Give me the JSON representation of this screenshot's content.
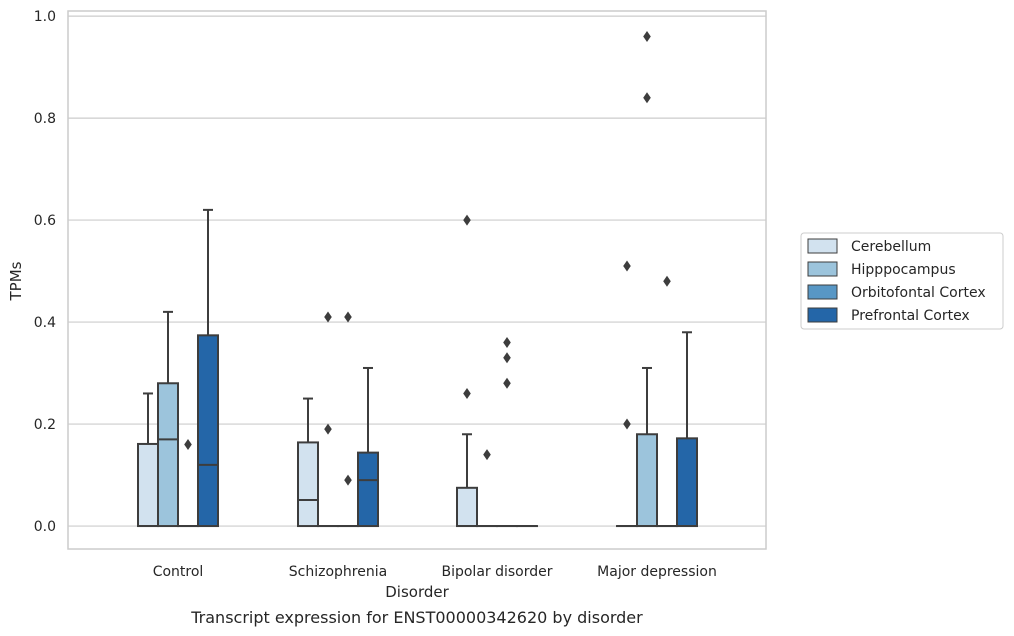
{
  "chart_data": {
    "type": "box",
    "title": "",
    "xlabel": "Disorder",
    "ylabel": "TPMs",
    "caption": "Transcript expression for ENST00000342620 by disorder",
    "categories": [
      "Control",
      "Schizophrenia",
      "Bipolar disorder",
      "Major depression"
    ],
    "ylim": [
      -0.045,
      1.01
    ],
    "yticks": [
      0.0,
      0.2,
      0.4,
      0.6,
      0.8,
      1.0
    ],
    "ytick_labels": [
      "0.0",
      "0.2",
      "0.4",
      "0.6",
      "0.8",
      "1.0"
    ],
    "grid": true,
    "legend_position": "right",
    "series": [
      {
        "name": "Cerebellum",
        "color": "#d2e2ef",
        "boxes": [
          {
            "q1": 0.0,
            "median": 0.0,
            "q3": 0.161,
            "whisker_low": 0.0,
            "whisker_high": 0.26,
            "outliers": []
          },
          {
            "q1": 0.0,
            "median": 0.051,
            "q3": 0.164,
            "whisker_low": 0.0,
            "whisker_high": 0.25,
            "outliers": []
          },
          {
            "q1": 0.0,
            "median": 0.0,
            "q3": 0.075,
            "whisker_low": 0.0,
            "whisker_high": 0.18,
            "outliers": [
              0.26,
              0.6
            ]
          },
          {
            "q1": 0.0,
            "median": 0.0,
            "q3": 0.0,
            "whisker_low": 0.0,
            "whisker_high": 0.0,
            "outliers": [
              0.2,
              0.51
            ]
          }
        ]
      },
      {
        "name": "Hipppocampus",
        "color": "#9cc4dc",
        "boxes": [
          {
            "q1": 0.0,
            "median": 0.17,
            "q3": 0.28,
            "whisker_low": 0.0,
            "whisker_high": 0.42,
            "outliers": []
          },
          {
            "q1": 0.0,
            "median": 0.0,
            "q3": 0.0,
            "whisker_low": 0.0,
            "whisker_high": 0.0,
            "outliers": [
              0.19,
              0.41
            ]
          },
          {
            "q1": 0.0,
            "median": 0.0,
            "q3": 0.0,
            "whisker_low": 0.0,
            "whisker_high": 0.0,
            "outliers": [
              0.14
            ]
          },
          {
            "q1": 0.0,
            "median": 0.0,
            "q3": 0.18,
            "whisker_low": 0.0,
            "whisker_high": 0.31,
            "outliers": [
              0.84,
              0.96
            ]
          }
        ]
      },
      {
        "name": "Orbitofontal Cortex",
        "color": "#5897c5",
        "boxes": [
          {
            "q1": 0.0,
            "median": 0.0,
            "q3": 0.0,
            "whisker_low": 0.0,
            "whisker_high": 0.0,
            "outliers": [
              0.16
            ]
          },
          {
            "q1": 0.0,
            "median": 0.0,
            "q3": 0.0,
            "whisker_low": 0.0,
            "whisker_high": 0.0,
            "outliers": [
              0.09,
              0.41
            ]
          },
          {
            "q1": 0.0,
            "median": 0.0,
            "q3": 0.0,
            "whisker_low": 0.0,
            "whisker_high": 0.0,
            "outliers": [
              0.28,
              0.33,
              0.36
            ]
          },
          {
            "q1": 0.0,
            "median": 0.0,
            "q3": 0.0,
            "whisker_low": 0.0,
            "whisker_high": 0.0,
            "outliers": [
              0.48
            ]
          }
        ]
      },
      {
        "name": "Prefrontal Cortex",
        "color": "#2466a8",
        "boxes": [
          {
            "q1": 0.0,
            "median": 0.12,
            "q3": 0.374,
            "whisker_low": 0.0,
            "whisker_high": 0.62,
            "outliers": []
          },
          {
            "q1": 0.0,
            "median": 0.09,
            "q3": 0.144,
            "whisker_low": 0.0,
            "whisker_high": 0.31,
            "outliers": []
          },
          {
            "q1": 0.0,
            "median": 0.0,
            "q3": 0.0,
            "whisker_low": 0.0,
            "whisker_high": 0.0,
            "outliers": []
          },
          {
            "q1": 0.0,
            "median": 0.0,
            "q3": 0.172,
            "whisker_low": 0.0,
            "whisker_high": 0.38,
            "outliers": []
          }
        ]
      }
    ]
  }
}
